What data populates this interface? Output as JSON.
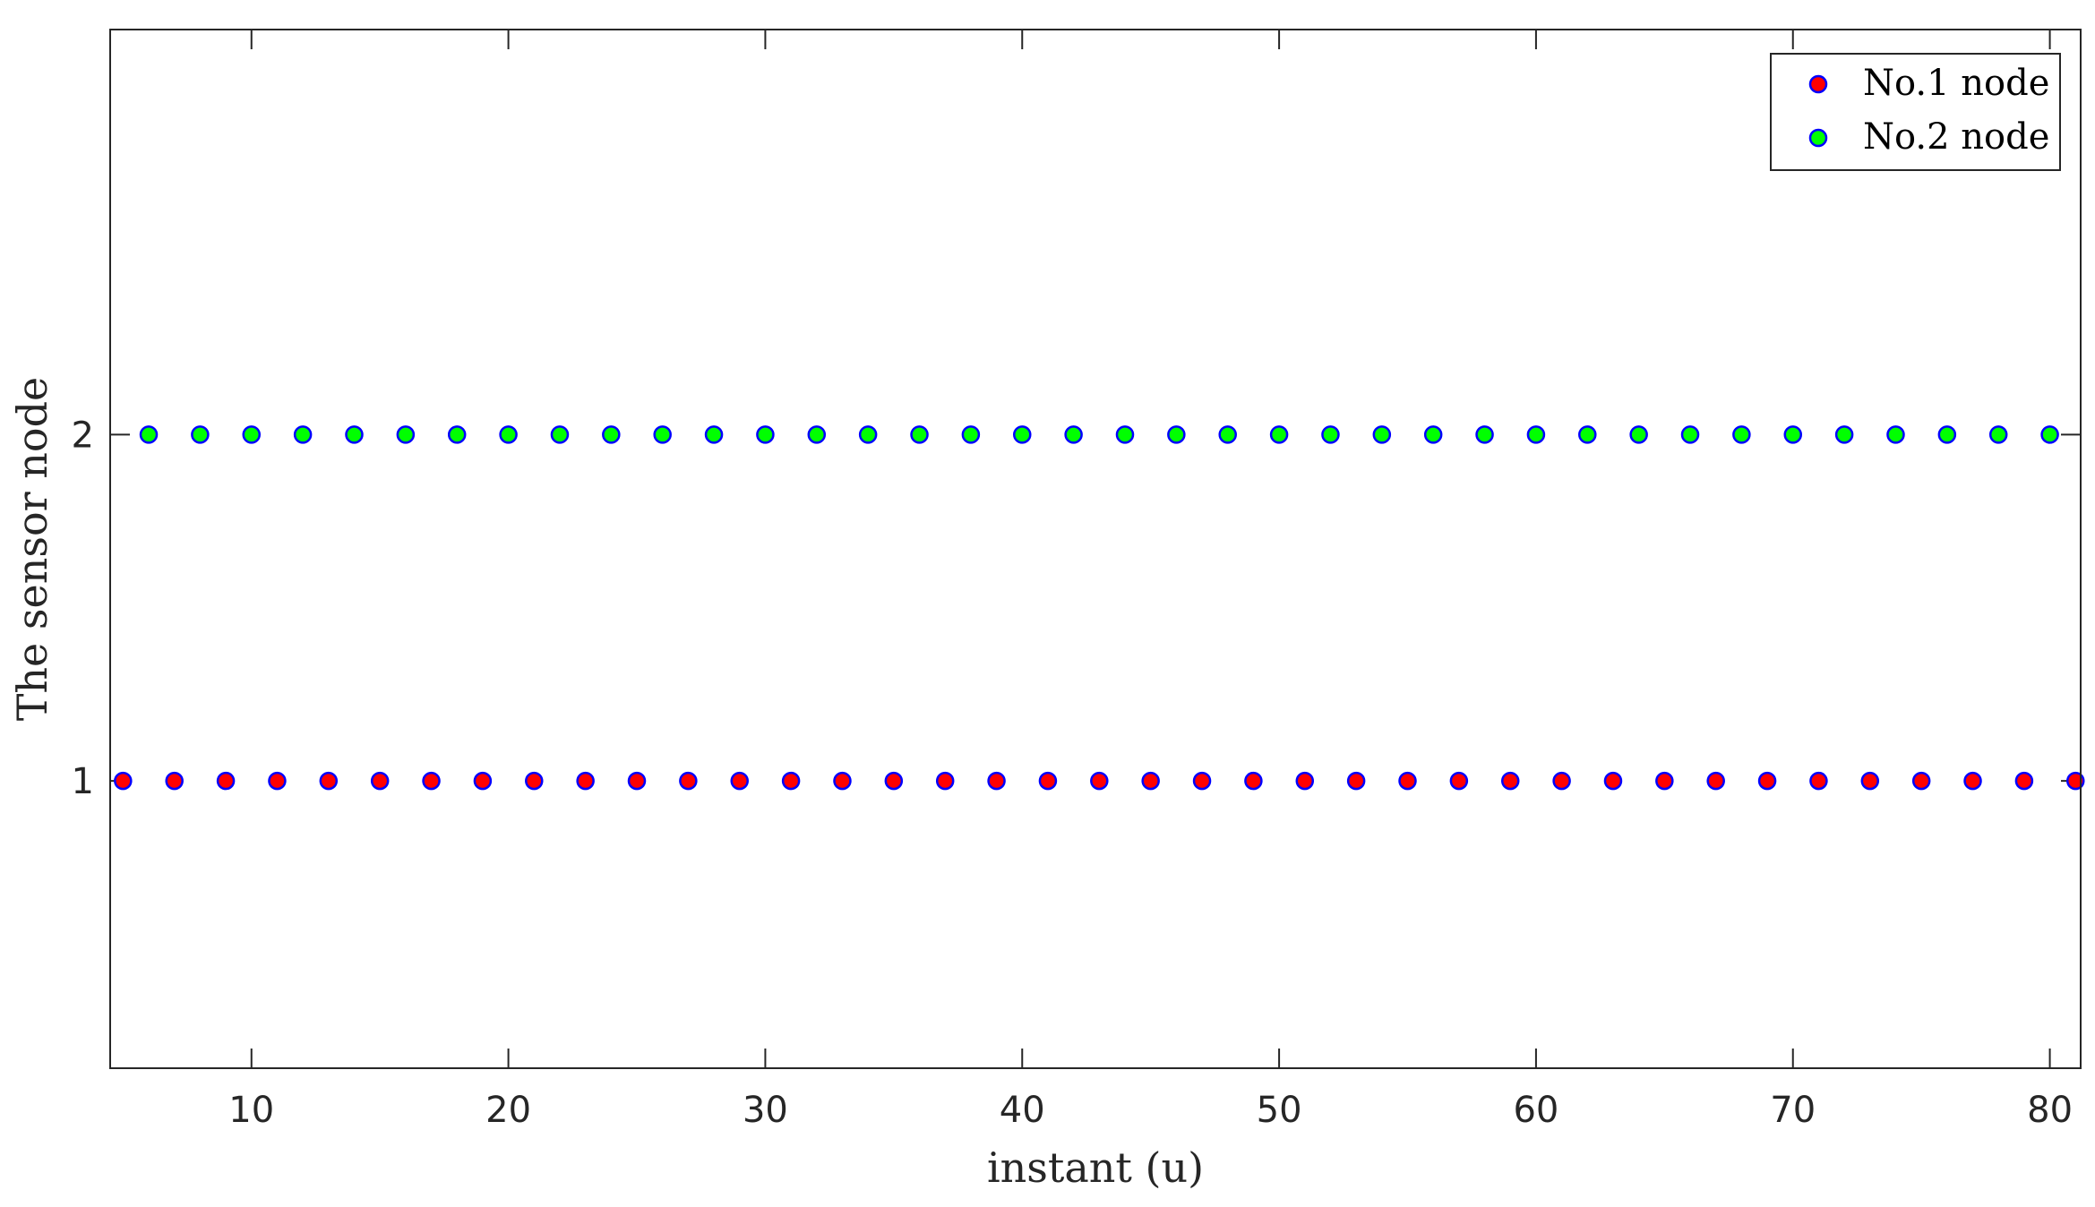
{
  "chart_data": {
    "type": "scatter",
    "title": "",
    "xlabel": "instant (u)",
    "ylabel": "The sensor node",
    "xlim": [
      4.5,
      81.2
    ],
    "ylim": [
      0.17,
      3.17
    ],
    "xticks": [
      10,
      20,
      30,
      40,
      50,
      60,
      70,
      80
    ],
    "yticks": [
      1,
      2
    ],
    "grid": false,
    "legend_position": "top-right",
    "marker_edge_color": "#0000ff",
    "series": [
      {
        "name": "No.1 node",
        "color": "#ff0000",
        "x": [
          5,
          7,
          9,
          11,
          13,
          15,
          17,
          19,
          21,
          23,
          25,
          27,
          29,
          31,
          33,
          35,
          37,
          39,
          41,
          43,
          45,
          47,
          49,
          51,
          53,
          55,
          57,
          59,
          61,
          63,
          65,
          67,
          69,
          71,
          73,
          75,
          77,
          79,
          81
        ],
        "y": [
          1,
          1,
          1,
          1,
          1,
          1,
          1,
          1,
          1,
          1,
          1,
          1,
          1,
          1,
          1,
          1,
          1,
          1,
          1,
          1,
          1,
          1,
          1,
          1,
          1,
          1,
          1,
          1,
          1,
          1,
          1,
          1,
          1,
          1,
          1,
          1,
          1,
          1,
          1
        ]
      },
      {
        "name": "No.2 node",
        "color": "#00ff00",
        "x": [
          6,
          8,
          10,
          12,
          14,
          16,
          18,
          20,
          22,
          24,
          26,
          28,
          30,
          32,
          34,
          36,
          38,
          40,
          42,
          44,
          46,
          48,
          50,
          52,
          54,
          56,
          58,
          60,
          62,
          64,
          66,
          68,
          70,
          72,
          74,
          76,
          78,
          80
        ],
        "y": [
          2,
          2,
          2,
          2,
          2,
          2,
          2,
          2,
          2,
          2,
          2,
          2,
          2,
          2,
          2,
          2,
          2,
          2,
          2,
          2,
          2,
          2,
          2,
          2,
          2,
          2,
          2,
          2,
          2,
          2,
          2,
          2,
          2,
          2,
          2,
          2,
          2,
          2
        ]
      }
    ]
  }
}
